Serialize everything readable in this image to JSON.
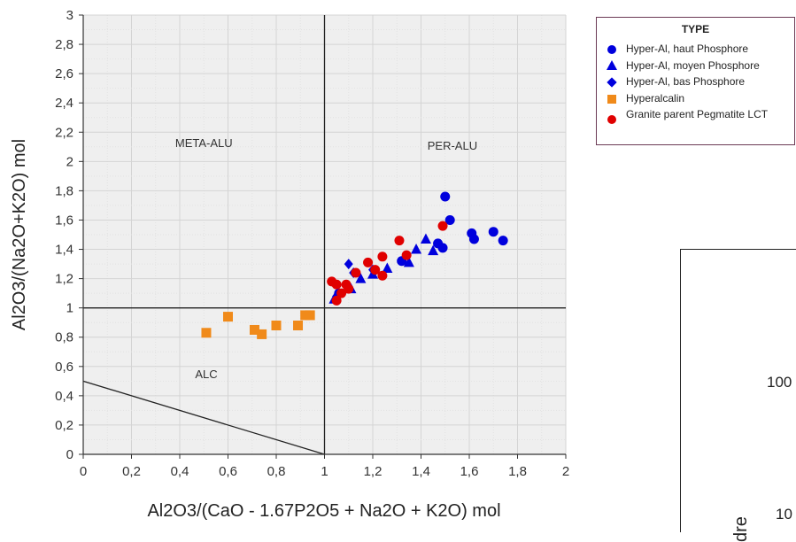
{
  "chart_data": {
    "type": "scatter",
    "xlabel": "Al2O3/(CaO - 1.67P2O5 + Na2O + K2O) mol",
    "ylabel": "Al2O3/(Na2O+K2O) mol",
    "xlim": [
      0,
      2
    ],
    "ylim": [
      0,
      3
    ],
    "x_ticks": [
      "0",
      "0,2",
      "0,4",
      "0,6",
      "0,8",
      "1",
      "1,2",
      "1,4",
      "1,6",
      "1,8",
      "2"
    ],
    "y_ticks": [
      "0",
      "0,2",
      "0,4",
      "0,6",
      "0,8",
      "1",
      "1,2",
      "1,4",
      "1,6",
      "1,8",
      "2",
      "2,2",
      "2,4",
      "2,6",
      "2,8",
      "3"
    ],
    "grid": true,
    "legend_position": "top-right, outside plot",
    "reference_lines": [
      {
        "name": "vertical",
        "points": [
          [
            1,
            0
          ],
          [
            1,
            3
          ]
        ]
      },
      {
        "name": "horizontal",
        "points": [
          [
            0,
            1
          ],
          [
            2,
            1
          ]
        ]
      },
      {
        "name": "diagonal",
        "points": [
          [
            0,
            0.5
          ],
          [
            1,
            0
          ]
        ]
      }
    ],
    "regions": [
      {
        "label": "META-ALU",
        "x": 0.5,
        "y": 2.1
      },
      {
        "label": "PER-ALU",
        "x": 1.53,
        "y": 2.08
      },
      {
        "label": "ALC",
        "x": 0.51,
        "y": 0.52
      }
    ],
    "legend": {
      "title": "TYPE",
      "entries": [
        {
          "label": "Hyper-Al, haut Phosphore",
          "marker": "circle",
          "color": "#0000dd"
        },
        {
          "label": "Hyper-Al, moyen Phosphore",
          "marker": "triangle",
          "color": "#0000dd"
        },
        {
          "label": "Hyper-Al, bas Phosphore",
          "marker": "diamond",
          "color": "#0000dd"
        },
        {
          "label": "Hyperalcalin",
          "marker": "square",
          "color": "#f08a1a"
        },
        {
          "label": "Granite parent Pegmatite LCT",
          "marker": "circle",
          "color": "#e00000"
        }
      ]
    },
    "series": [
      {
        "name": "Hyper-Al, haut Phosphore",
        "marker": "circle",
        "color": "#0000dd",
        "points": [
          [
            1.5,
            1.76
          ],
          [
            1.52,
            1.6
          ],
          [
            1.7,
            1.52
          ],
          [
            1.61,
            1.51
          ],
          [
            1.62,
            1.47
          ],
          [
            1.74,
            1.46
          ],
          [
            1.47,
            1.44
          ],
          [
            1.49,
            1.41
          ],
          [
            1.32,
            1.32
          ],
          [
            1.06,
            1.1
          ]
        ]
      },
      {
        "name": "Hyper-Al, moyen Phosphore",
        "marker": "triangle",
        "color": "#0000dd",
        "points": [
          [
            1.42,
            1.47
          ],
          [
            1.38,
            1.4
          ],
          [
            1.45,
            1.39
          ],
          [
            1.35,
            1.31
          ],
          [
            1.26,
            1.27
          ],
          [
            1.2,
            1.23
          ],
          [
            1.15,
            1.2
          ],
          [
            1.11,
            1.13
          ],
          [
            1.04,
            1.06
          ]
        ]
      },
      {
        "name": "Hyper-Al, bas Phosphore",
        "marker": "diamond",
        "color": "#0000dd",
        "points": [
          [
            1.1,
            1.3
          ],
          [
            1.12,
            1.24
          ],
          [
            1.2,
            1.26
          ],
          [
            1.05,
            1.08
          ]
        ]
      },
      {
        "name": "Hyperalcalin",
        "marker": "square",
        "color": "#f08a1a",
        "points": [
          [
            0.51,
            0.83
          ],
          [
            0.6,
            0.94
          ],
          [
            0.71,
            0.85
          ],
          [
            0.74,
            0.82
          ],
          [
            0.8,
            0.88
          ],
          [
            0.89,
            0.88
          ],
          [
            0.92,
            0.95
          ],
          [
            0.94,
            0.95
          ]
        ]
      },
      {
        "name": "Granite parent Pegmatite LCT",
        "marker": "circle",
        "color": "#e00000",
        "points": [
          [
            1.49,
            1.56
          ],
          [
            1.31,
            1.46
          ],
          [
            1.34,
            1.36
          ],
          [
            1.24,
            1.35
          ],
          [
            1.18,
            1.31
          ],
          [
            1.21,
            1.26
          ],
          [
            1.24,
            1.22
          ],
          [
            1.13,
            1.24
          ],
          [
            1.03,
            1.18
          ],
          [
            1.05,
            1.16
          ],
          [
            1.09,
            1.16
          ],
          [
            1.1,
            1.13
          ],
          [
            1.07,
            1.1
          ],
          [
            1.05,
            1.05
          ]
        ]
      }
    ]
  },
  "partial_chart": {
    "tick_1": "100",
    "tick_2": "10",
    "label_fragment": "dre"
  }
}
